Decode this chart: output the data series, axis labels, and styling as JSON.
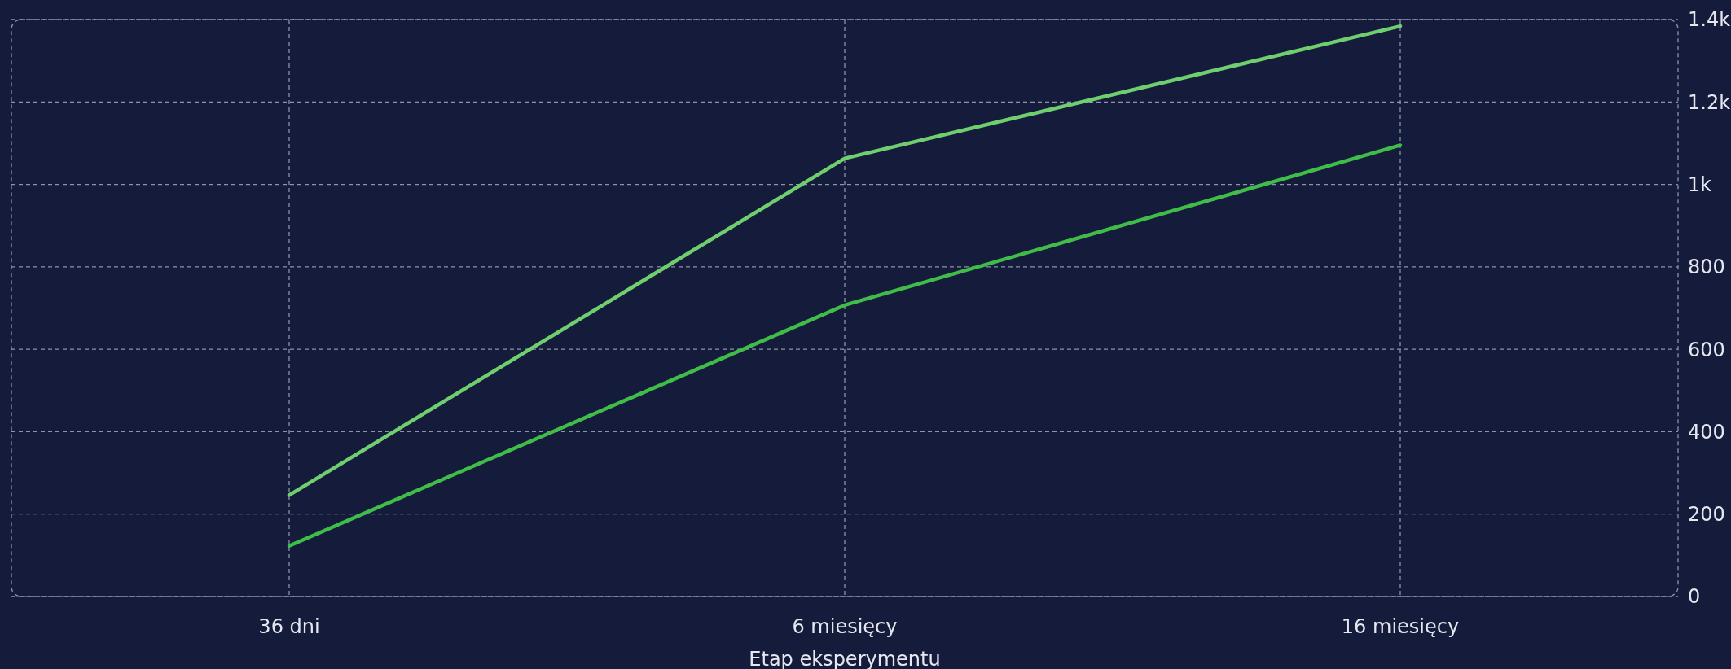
{
  "chart_data": {
    "type": "line",
    "xlabel": "Etap eksperymentu",
    "categories": [
      "36 dni",
      "6 miesięcy",
      "16 miesięcy"
    ],
    "series": [
      {
        "color": "#6fcf6f",
        "values": [
          246,
          1063,
          1384
        ]
      },
      {
        "color": "#3fbd48",
        "values": [
          123,
          707,
          1095
        ]
      }
    ],
    "ylim": [
      0,
      1400
    ],
    "yticks": [
      0,
      200,
      400,
      600,
      800,
      {
        "value": 1000,
        "label": "1k"
      },
      {
        "value": 1200,
        "label": "1.2k"
      },
      {
        "value": 1400,
        "label": "1.4k"
      }
    ],
    "grid": true,
    "line_style": "solid",
    "marker": "none"
  }
}
